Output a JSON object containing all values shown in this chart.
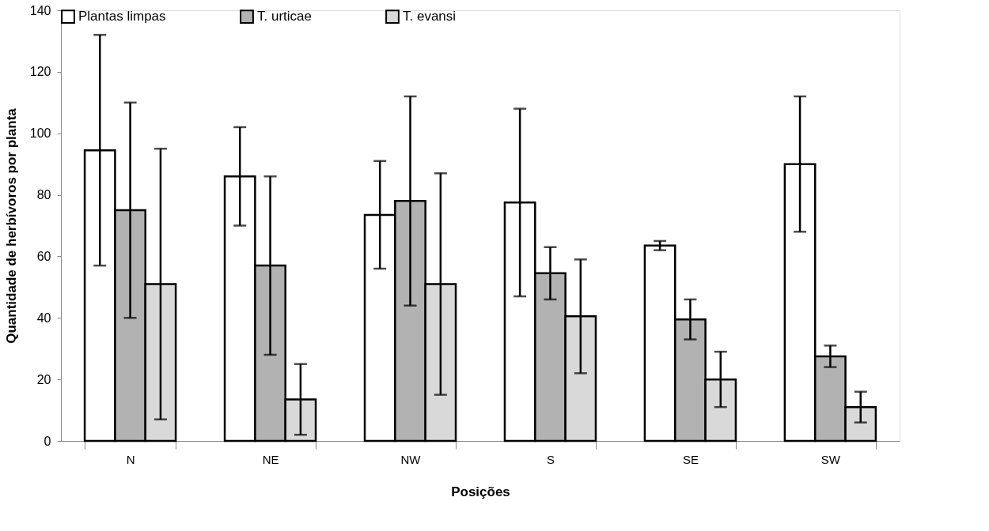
{
  "chart_data": {
    "type": "bar",
    "xlabel": "Posições",
    "ylabel": "Quantidade de herbívoros por planta",
    "categories": [
      "N",
      "NE",
      "NW",
      "S",
      "SE",
      "SW"
    ],
    "series": [
      {
        "name": "Plantas limpas",
        "color": "#ffffff",
        "values": [
          94.5,
          86,
          73.5,
          77.5,
          63.5,
          90
        ],
        "errors": [
          [
            57,
            132
          ],
          [
            70,
            102
          ],
          [
            56,
            91
          ],
          [
            47,
            108
          ],
          [
            62,
            65
          ],
          [
            68,
            112
          ]
        ]
      },
      {
        "name": "T. urticae",
        "color": "#b2b2b2",
        "values": [
          75,
          57,
          78,
          54.5,
          39.5,
          27.5
        ],
        "errors": [
          [
            40,
            110
          ],
          [
            28,
            86
          ],
          [
            44,
            112
          ],
          [
            46,
            63
          ],
          [
            33,
            46
          ],
          [
            24,
            31
          ]
        ]
      },
      {
        "name": "T. evansi",
        "color": "#d9d9d9",
        "values": [
          51,
          13.5,
          51,
          40.5,
          20,
          11
        ],
        "errors": [
          [
            7,
            95
          ],
          [
            2,
            25
          ],
          [
            15,
            87
          ],
          [
            22,
            59
          ],
          [
            11,
            29
          ],
          [
            6,
            16
          ]
        ]
      }
    ],
    "ylim": [
      0,
      140
    ],
    "yticks": [
      0,
      20,
      40,
      60,
      80,
      100,
      120,
      140
    ],
    "grid": false,
    "legend": "top"
  }
}
